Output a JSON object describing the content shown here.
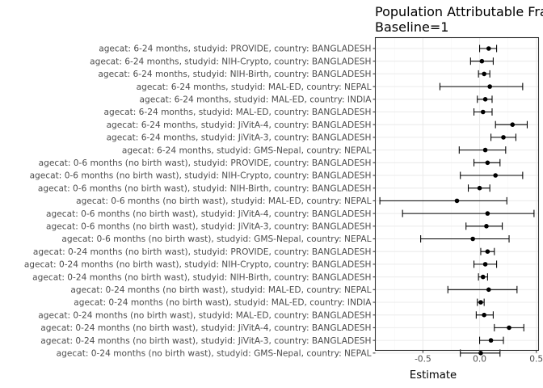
{
  "chart_data": {
    "type": "scatter",
    "subtype": "forest-plot",
    "title_lines": [
      "Population Attributable Fra",
      "Baseline=1"
    ],
    "xlabel": "Estimate",
    "ylabel": "",
    "xlim": [
      -0.92,
      0.52
    ],
    "x_ticks": [
      -0.5,
      0.0,
      0.5
    ],
    "x_tick_labels": [
      "-0.5",
      "0.0",
      "0.5"
    ],
    "grid": true,
    "rows": [
      {
        "label": "agecat: 6-24 months, studyid: PROVIDE, country: BANGLADESH",
        "estimate": 0.08,
        "lower": 0.0,
        "upper": 0.15
      },
      {
        "label": "agecat: 6-24 months, studyid: NIH-Crypto, country: BANGLADESH",
        "estimate": 0.02,
        "lower": -0.08,
        "upper": 0.12
      },
      {
        "label": "agecat: 6-24 months, studyid: NIH-Birth, country: BANGLADESH",
        "estimate": 0.04,
        "lower": -0.01,
        "upper": 0.09
      },
      {
        "label": "agecat: 6-24 months, studyid: MAL-ED, country: NEPAL",
        "estimate": 0.09,
        "lower": -0.35,
        "upper": 0.38
      },
      {
        "label": "agecat: 6-24 months, studyid: MAL-ED, country: INDIA",
        "estimate": 0.05,
        "lower": -0.02,
        "upper": 0.11
      },
      {
        "label": "agecat: 6-24 months, studyid: MAL-ED, country: BANGLADESH",
        "estimate": 0.03,
        "lower": -0.05,
        "upper": 0.11
      },
      {
        "label": "agecat: 6-24 months, studyid: JiVitA-4, country: BANGLADESH",
        "estimate": 0.29,
        "lower": 0.14,
        "upper": 0.42
      },
      {
        "label": "agecat: 6-24 months, studyid: JiVitA-3, country: BANGLADESH",
        "estimate": 0.21,
        "lower": 0.1,
        "upper": 0.32
      },
      {
        "label": "agecat: 6-24 months, studyid: GMS-Nepal, country: NEPAL",
        "estimate": 0.05,
        "lower": -0.18,
        "upper": 0.23
      },
      {
        "label": "agecat: 0-6 months (no birth wast), studyid: PROVIDE, country: BANGLADESH",
        "estimate": 0.07,
        "lower": -0.05,
        "upper": 0.18
      },
      {
        "label": "agecat: 0-6 months (no birth wast), studyid: NIH-Crypto, country: BANGLADESH",
        "estimate": 0.14,
        "lower": -0.17,
        "upper": 0.38
      },
      {
        "label": "agecat: 0-6 months (no birth wast), studyid: NIH-Birth, country: BANGLADESH",
        "estimate": 0.0,
        "lower": -0.1,
        "upper": 0.09
      },
      {
        "label": "agecat: 0-6 months (no birth wast), studyid: MAL-ED, country: NEPAL",
        "estimate": -0.2,
        "lower": -0.88,
        "upper": 0.24
      },
      {
        "label": "agecat: 0-6 months (no birth wast), studyid: JiVitA-4, country: BANGLADESH",
        "estimate": 0.07,
        "lower": -0.68,
        "upper": 0.48
      },
      {
        "label": "agecat: 0-6 months (no birth wast), studyid: JiVitA-3, country: BANGLADESH",
        "estimate": 0.06,
        "lower": -0.12,
        "upper": 0.2
      },
      {
        "label": "agecat: 0-6 months (no birth wast), studyid: GMS-Nepal, country: NEPAL",
        "estimate": -0.06,
        "lower": -0.52,
        "upper": 0.26
      },
      {
        "label": "agecat: 0-24 months (no birth wast), studyid: PROVIDE, country: BANGLADESH",
        "estimate": 0.07,
        "lower": 0.01,
        "upper": 0.13
      },
      {
        "label": "agecat: 0-24 months (no birth wast), studyid: NIH-Crypto, country: BANGLADESH",
        "estimate": 0.05,
        "lower": -0.05,
        "upper": 0.15
      },
      {
        "label": "agecat: 0-24 months (no birth wast), studyid: NIH-Birth, country: BANGLADESH",
        "estimate": 0.03,
        "lower": -0.01,
        "upper": 0.07
      },
      {
        "label": "agecat: 0-24 months (no birth wast), studyid: MAL-ED, country: NEPAL",
        "estimate": 0.08,
        "lower": -0.28,
        "upper": 0.33
      },
      {
        "label": "agecat: 0-24 months (no birth wast), studyid: MAL-ED, country: INDIA",
        "estimate": 0.01,
        "lower": -0.02,
        "upper": 0.04
      },
      {
        "label": "agecat: 0-24 months (no birth wast), studyid: MAL-ED, country: BANGLADESH",
        "estimate": 0.04,
        "lower": -0.03,
        "upper": 0.12
      },
      {
        "label": "agecat: 0-24 months (no birth wast), studyid: JiVitA-4, country: BANGLADESH",
        "estimate": 0.26,
        "lower": 0.13,
        "upper": 0.39
      },
      {
        "label": "agecat: 0-24 months (no birth wast), studyid: JiVitA-3, country: BANGLADESH",
        "estimate": 0.1,
        "lower": 0.0,
        "upper": 0.21
      },
      {
        "label": "agecat: 0-24 months (no birth wast), studyid: GMS-Nepal, country: NEPAL",
        "estimate": 0.01,
        "lower": -0.17,
        "upper": 0.18
      }
    ]
  }
}
